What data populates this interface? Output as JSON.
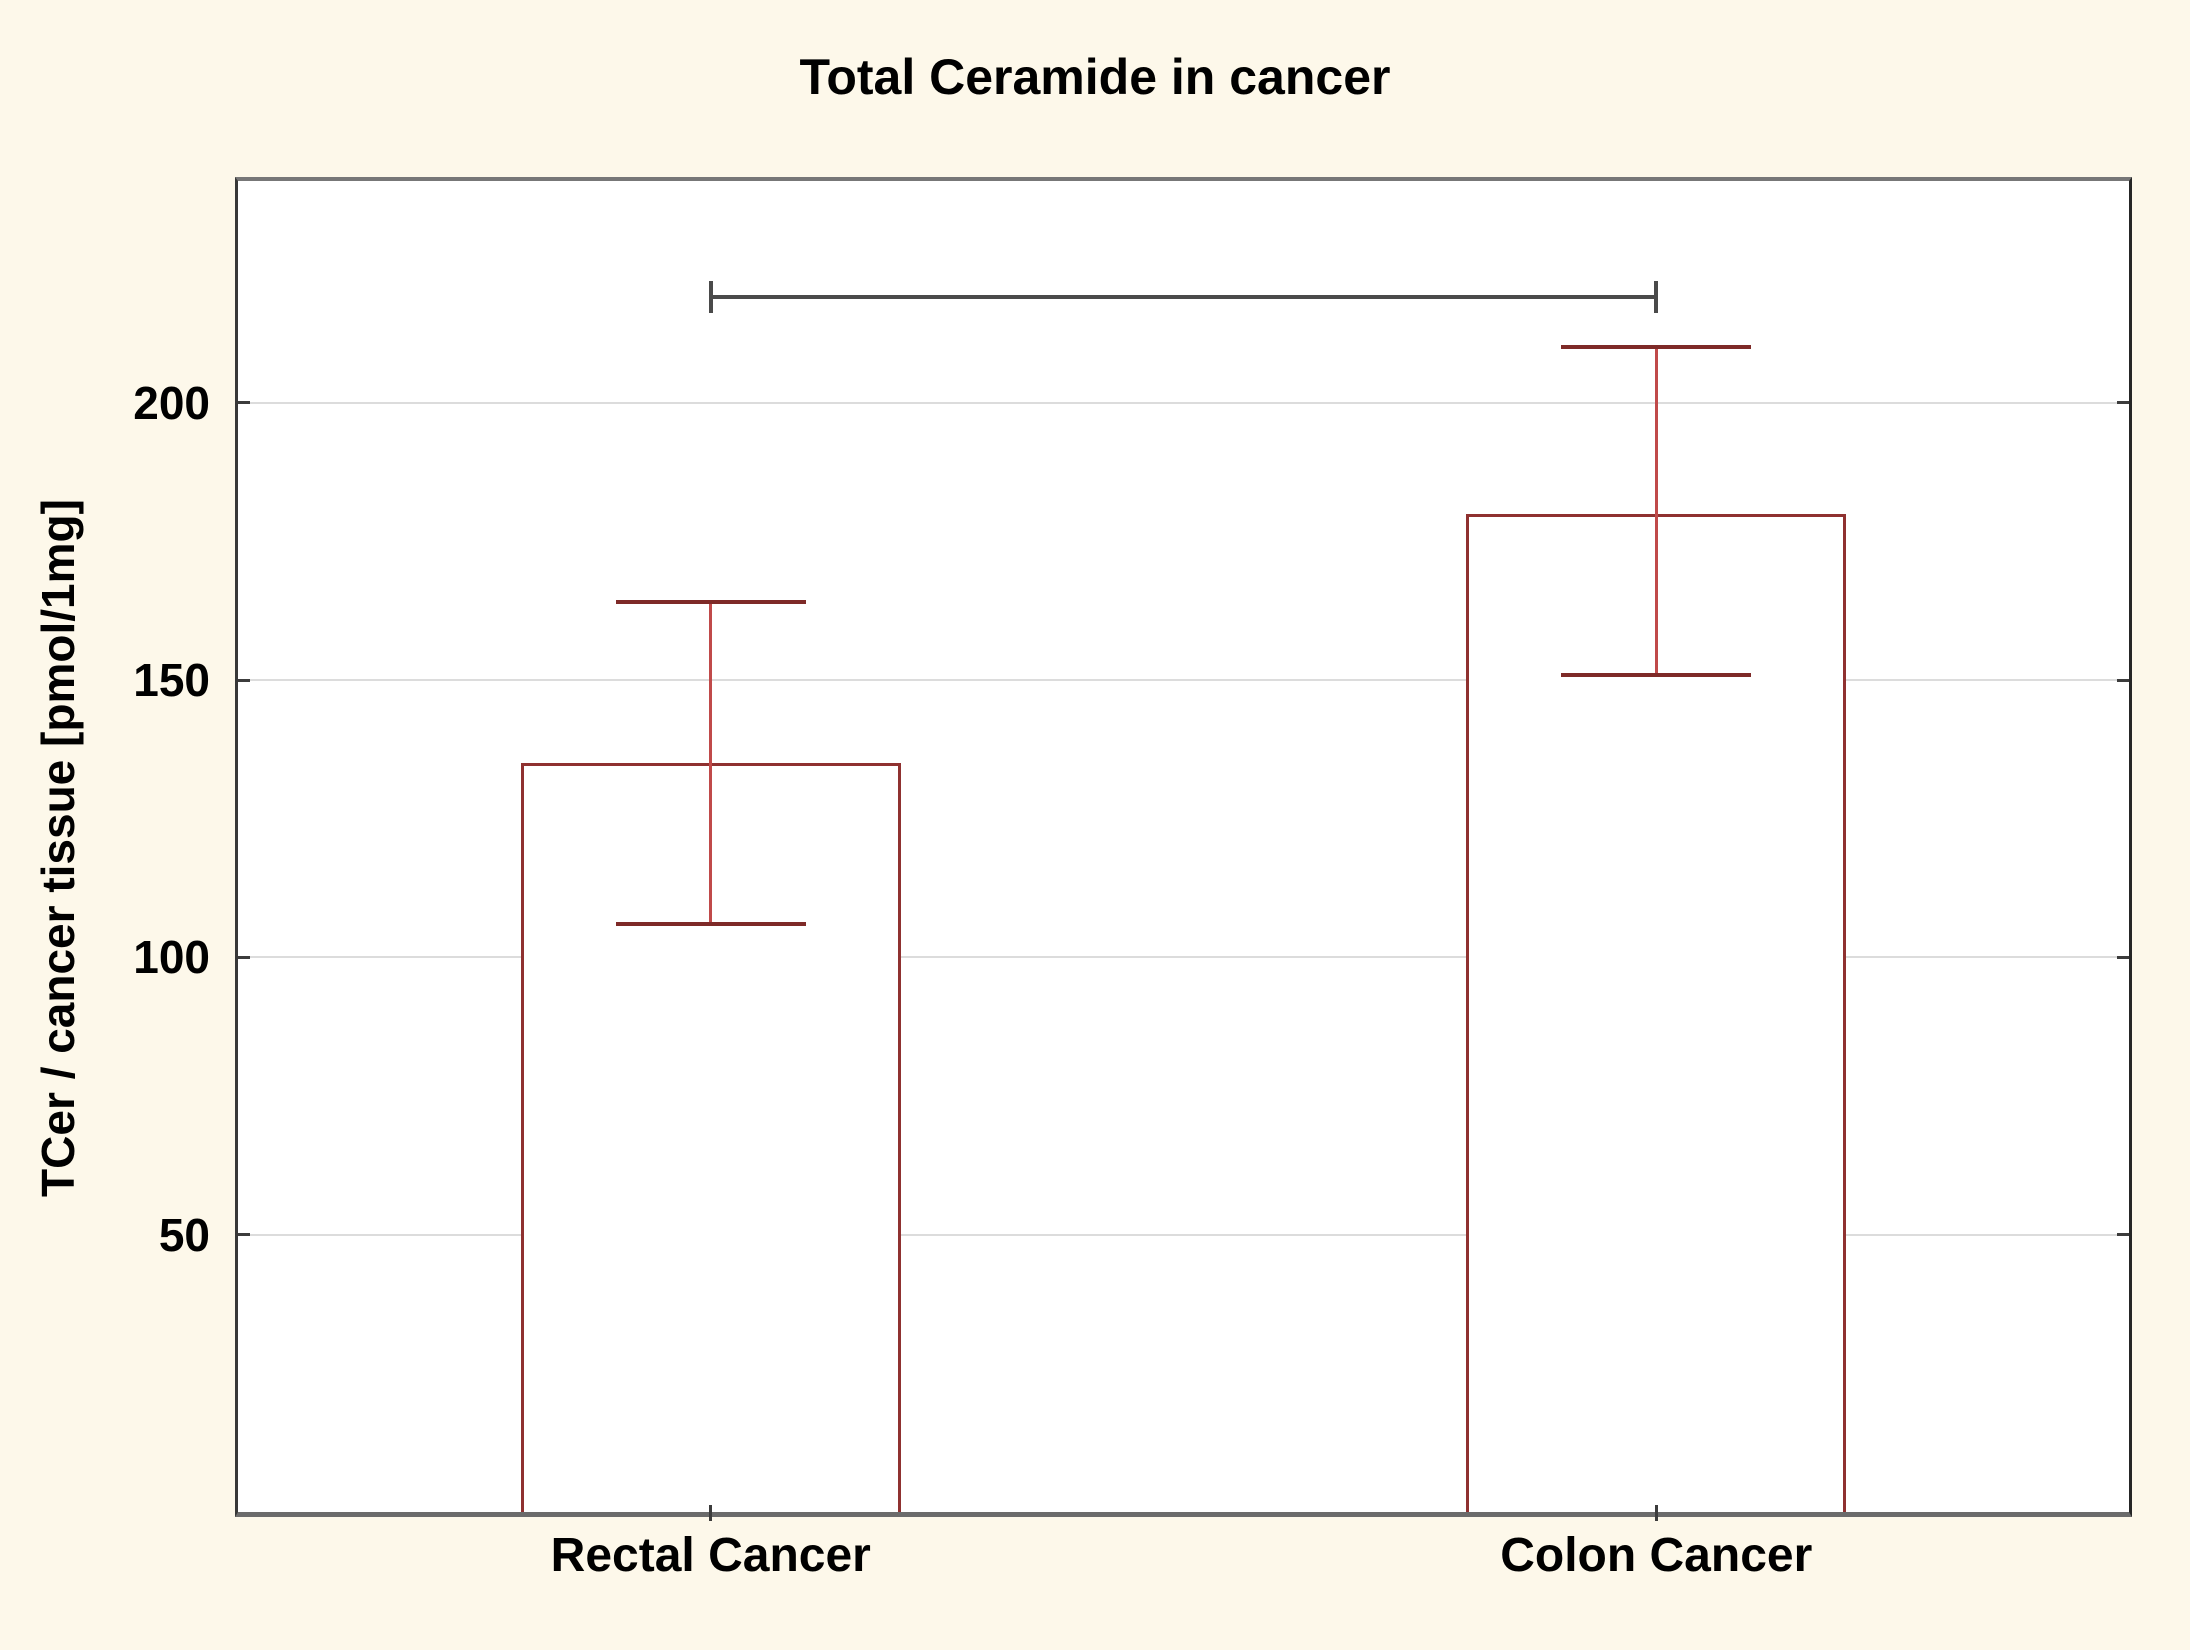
{
  "title": "Total Ceramide in cancer",
  "chart_data": {
    "type": "bar",
    "title": "Total Ceramide in cancer",
    "ylabel": "TCer / cancer tissue [pmol/1mg]",
    "xlabel": "",
    "categories": [
      "Rectal Cancer",
      "Colon Cancer"
    ],
    "values": [
      135,
      180
    ],
    "error_low": [
      106,
      151
    ],
    "error_high": [
      164,
      210
    ],
    "yticks": [
      50,
      100,
      150,
      200
    ],
    "ylim": [
      0,
      240
    ],
    "grid": "horizontal-only",
    "legend": "none",
    "significance_bracket": {
      "connects": [
        "Rectal Cancer",
        "Colon Cancer"
      ],
      "y_value": 219
    }
  },
  "colors": {
    "background": "#FDF8EA",
    "plot_background": "#FFFFFF",
    "gridline": "#DCDCDC",
    "frame_top": "#777777",
    "frame_bottom": "#6B6B6B",
    "frame_left": "#383838",
    "frame_right": "#262626",
    "tick": "#3C3C3C",
    "bar_stroke": "#8F3130",
    "bar_fill": "#FFFFFF",
    "error_line": "#C04A4A",
    "error_cap": "#7E2A28",
    "sig_line": "#4A4A4A",
    "text": "#000000"
  }
}
